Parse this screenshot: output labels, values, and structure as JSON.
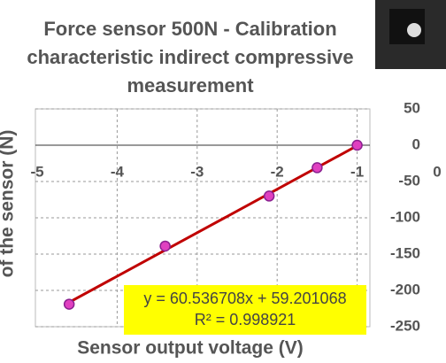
{
  "chart_data": {
    "type": "scatter",
    "title_lines": [
      "Force sensor 500N - Calibration",
      "characteristic indirect compressive",
      "measurement"
    ],
    "x_label": "Sensor output voltage (V)",
    "y_label": "of the sensor (N)",
    "x": [
      -4.6,
      -3.4,
      -2.1,
      -1.5,
      -1.0
    ],
    "values": [
      -219,
      -139,
      -70,
      -31,
      0
    ],
    "color": "#e040c0",
    "trendline_color": "#c00000",
    "annotation": [
      "y = 60.536708x + 59.201068",
      "R² = 0.998921"
    ],
    "xlim": [
      -5,
      0
    ],
    "xticks": [
      -5,
      -4,
      -3,
      -2,
      -1,
      0
    ],
    "ylim": [
      -250,
      50
    ],
    "yticks": [
      50,
      0,
      -50,
      -100,
      -150,
      -200,
      -250
    ],
    "grid": true
  }
}
